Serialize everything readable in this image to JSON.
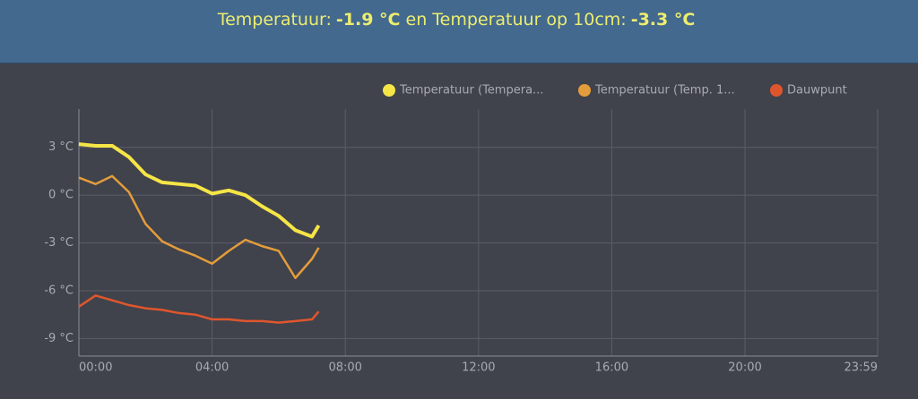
{
  "header": {
    "parts": [
      {
        "label": "Temperatuur:",
        "value": "-1.9 °C"
      },
      {
        "label": "en Temperatuur op 10cm:",
        "value": "-3.3 °C"
      }
    ]
  },
  "chart_data": {
    "type": "line",
    "x": [
      0,
      0.5,
      1.0,
      1.5,
      2.0,
      2.5,
      3.0,
      3.5,
      4.0,
      4.5,
      5.0,
      5.5,
      6.0,
      6.5,
      7.0,
      7.2
    ],
    "series": [
      {
        "name": "Temperatuur (Tempera...",
        "color": "#f5e546",
        "values": [
          3.2,
          3.1,
          3.1,
          2.4,
          1.3,
          0.8,
          0.7,
          0.6,
          0.1,
          0.3,
          0,
          -0.7,
          -1.3,
          -2.2,
          -2.6,
          -1.9
        ]
      },
      {
        "name": "Temperatuur (Temp. 1...",
        "color": "#e39d3a",
        "values": [
          1.1,
          0.7,
          1.2,
          0.2,
          -1.8,
          -2.9,
          -3.4,
          -3.8,
          -4.3,
          -3.5,
          -2.8,
          -3.2,
          -3.5,
          -5.2,
          -4.0,
          -3.3
        ]
      },
      {
        "name": "Dauwpunt",
        "color": "#e0562c",
        "values": [
          -7.0,
          -6.3,
          -6.6,
          -6.9,
          -7.1,
          -7.2,
          -7.4,
          -7.5,
          -7.8,
          -7.8,
          -7.9,
          -7.9,
          -8.0,
          -7.9,
          -7.8,
          -7.3
        ]
      }
    ],
    "xlim": [
      0,
      23.983
    ],
    "xticks": [
      {
        "value": 0,
        "label": "00:00"
      },
      {
        "value": 4,
        "label": "04:00"
      },
      {
        "value": 8,
        "label": "08:00"
      },
      {
        "value": 12,
        "label": "12:00"
      },
      {
        "value": 16,
        "label": "16:00"
      },
      {
        "value": 20,
        "label": "20:00"
      },
      {
        "value": 23.983,
        "label": "23:59"
      }
    ],
    "ylim": [
      -10.1,
      5.4
    ],
    "yticks": [
      {
        "value": 3,
        "label": "3 °C"
      },
      {
        "value": 0,
        "label": "0 °C"
      },
      {
        "value": -3,
        "label": "-3 °C"
      },
      {
        "value": -6,
        "label": "-6 °C"
      },
      {
        "value": -9,
        "label": "-9 °C"
      }
    ],
    "grid": true
  }
}
